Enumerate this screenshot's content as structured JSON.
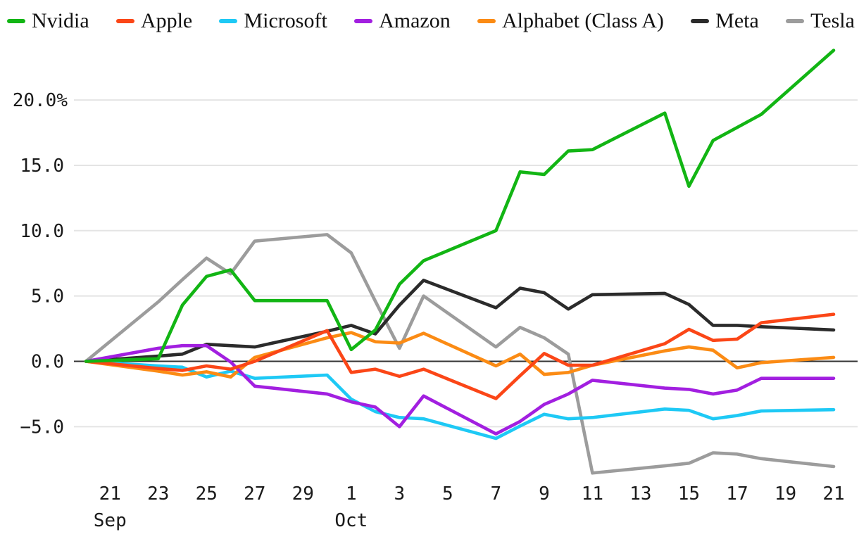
{
  "chart_data": {
    "type": "line",
    "title": "",
    "unit": "%",
    "background": "#ffffff",
    "grid_color": "#e4e4e4",
    "zero_line_color": "#333333",
    "legend_position": "top",
    "grid": true,
    "y_axis": {
      "range": [
        -9.6,
        24.6
      ],
      "ticks": [
        {
          "label": "20.0%",
          "value": 20
        },
        {
          "label": "15.0",
          "value": 15
        },
        {
          "label": "10.0",
          "value": 10
        },
        {
          "label": "5.0",
          "value": 5
        },
        {
          "label": "0.0",
          "value": 0
        },
        {
          "label": "−5.0",
          "value": -5
        }
      ]
    },
    "x_axis": {
      "ticks": [
        {
          "label": "21",
          "day": 1
        },
        {
          "label": "23",
          "day": 3
        },
        {
          "label": "25",
          "day": 5
        },
        {
          "label": "27",
          "day": 7
        },
        {
          "label": "29",
          "day": 9
        },
        {
          "label": "1",
          "day": 11
        },
        {
          "label": "3",
          "day": 13
        },
        {
          "label": "5",
          "day": 15
        },
        {
          "label": "7",
          "day": 17
        },
        {
          "label": "9",
          "day": 19
        },
        {
          "label": "11",
          "day": 21
        },
        {
          "label": "13",
          "day": 23
        },
        {
          "label": "15",
          "day": 25
        },
        {
          "label": "17",
          "day": 27
        },
        {
          "label": "19",
          "day": 29
        },
        {
          "label": "21",
          "day": 31
        }
      ],
      "months": [
        {
          "label": "Sep",
          "day": 1
        },
        {
          "label": "Oct",
          "day": 11
        }
      ]
    },
    "dates": [
      "Sep 20",
      "Sep 23",
      "Sep 24",
      "Sep 25",
      "Sep 26",
      "Sep 27",
      "Sep 30",
      "Oct 1",
      "Oct 2",
      "Oct 3",
      "Oct 4",
      "Oct 7",
      "Oct 8",
      "Oct 9",
      "Oct 10",
      "Oct 11",
      "Oct 14",
      "Oct 15",
      "Oct 16",
      "Oct 17",
      "Oct 18",
      "Oct 21"
    ],
    "day_index": [
      0,
      3,
      4,
      5,
      6,
      7,
      10,
      11,
      12,
      13,
      14,
      17,
      18,
      19,
      20,
      21,
      24,
      25,
      26,
      27,
      28,
      31
    ],
    "series": [
      {
        "name": "Nvidia",
        "color": "#12b514",
        "values": [
          0,
          0.2,
          4.3,
          6.5,
          7.0,
          4.65,
          4.65,
          0.9,
          2.4,
          5.9,
          7.7,
          10.0,
          14.5,
          14.3,
          16.1,
          16.2,
          19.0,
          13.4,
          16.9,
          17.9,
          18.9,
          23.8
        ]
      },
      {
        "name": "Apple",
        "color": "#fb4617",
        "values": [
          0,
          -0.55,
          -0.7,
          -0.35,
          -0.6,
          0.0,
          2.35,
          -0.85,
          -0.6,
          -1.15,
          -0.6,
          -2.85,
          -1.1,
          0.6,
          -0.3,
          -0.3,
          1.35,
          2.45,
          1.6,
          1.7,
          2.95,
          3.6
        ]
      },
      {
        "name": "Microsoft",
        "color": "#1ec9f5",
        "values": [
          0,
          -0.35,
          -0.45,
          -1.2,
          -0.75,
          -1.3,
          -1.05,
          -2.9,
          -3.85,
          -4.3,
          -4.4,
          -5.9,
          -4.95,
          -4.05,
          -4.4,
          -4.3,
          -3.65,
          -3.75,
          -4.4,
          -4.15,
          -3.8,
          -3.7
        ]
      },
      {
        "name": "Amazon",
        "color": "#a21fe0",
        "values": [
          0,
          1.0,
          1.2,
          1.2,
          -0.05,
          -1.9,
          -2.5,
          -3.1,
          -3.5,
          -5.0,
          -2.65,
          -5.55,
          -4.6,
          -3.3,
          -2.5,
          -1.45,
          -2.05,
          -2.15,
          -2.5,
          -2.2,
          -1.3,
          -1.3
        ]
      },
      {
        "name": "Alphabet (Class A)",
        "color": "#fb8b14",
        "values": [
          0,
          -0.75,
          -1.05,
          -0.8,
          -1.2,
          0.3,
          1.8,
          2.2,
          1.5,
          1.4,
          2.15,
          -0.35,
          0.55,
          -1.0,
          -0.85,
          -0.3,
          0.8,
          1.1,
          0.85,
          -0.5,
          -0.1,
          0.3
        ]
      },
      {
        "name": "Meta",
        "color": "#2b2b2b",
        "values": [
          0,
          0.4,
          0.55,
          1.3,
          1.2,
          1.1,
          2.3,
          2.75,
          2.1,
          4.3,
          6.2,
          4.1,
          5.6,
          5.25,
          4.0,
          5.1,
          5.2,
          4.35,
          2.75,
          2.75,
          2.65,
          2.4
        ]
      },
      {
        "name": "Tesla",
        "color": "#9c9c9c",
        "values": [
          0,
          4.55,
          6.25,
          7.9,
          6.7,
          9.2,
          9.7,
          8.3,
          4.6,
          1.0,
          5.0,
          1.1,
          2.6,
          1.8,
          0.55,
          -8.55,
          -8.0,
          -7.8,
          -7.0,
          -7.1,
          -7.45,
          -8.05
        ]
      }
    ],
    "z_order": [
      "Tesla",
      "Meta",
      "Microsoft",
      "Alphabet (Class A)",
      "Amazon",
      "Apple",
      "Nvidia"
    ]
  }
}
